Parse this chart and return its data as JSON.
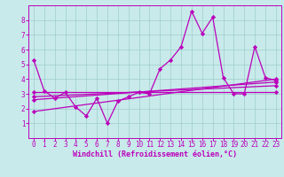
{
  "background_color": "#c8eaea",
  "plot_bg_color": "#c8eaea",
  "line_color": "#bb00bb",
  "grid_color": "#a0cccc",
  "xlabel": "Windchill (Refroidissement éolien,°C)",
  "xlim": [
    -0.5,
    23.5
  ],
  "ylim": [
    0,
    9
  ],
  "xticks": [
    0,
    1,
    2,
    3,
    4,
    5,
    6,
    7,
    8,
    9,
    10,
    11,
    12,
    13,
    14,
    15,
    16,
    17,
    18,
    19,
    20,
    21,
    22,
    23
  ],
  "yticks": [
    1,
    2,
    3,
    4,
    5,
    6,
    7,
    8
  ],
  "tick_fontsize": 5.5,
  "xlabel_fontsize": 6.0,
  "line1_x": [
    0,
    1,
    2,
    3,
    4,
    5,
    6,
    7,
    8,
    9,
    10,
    11,
    12,
    13,
    14,
    15,
    16,
    17,
    18,
    19,
    20,
    21,
    22,
    23
  ],
  "line1_y": [
    5.3,
    3.2,
    2.7,
    3.1,
    2.1,
    1.5,
    2.7,
    1.0,
    2.5,
    2.8,
    3.1,
    3.0,
    4.7,
    5.3,
    6.2,
    8.6,
    7.1,
    8.2,
    4.1,
    3.0,
    3.0,
    6.2,
    4.1,
    3.9
  ],
  "line2_x": [
    0,
    23
  ],
  "line2_y": [
    1.8,
    4.0
  ],
  "line3_x": [
    0,
    23
  ],
  "line3_y": [
    2.6,
    3.8
  ],
  "line4_x": [
    0,
    23
  ],
  "line4_y": [
    3.15,
    3.15
  ],
  "line5_x": [
    0,
    23
  ],
  "line5_y": [
    2.8,
    3.55
  ]
}
